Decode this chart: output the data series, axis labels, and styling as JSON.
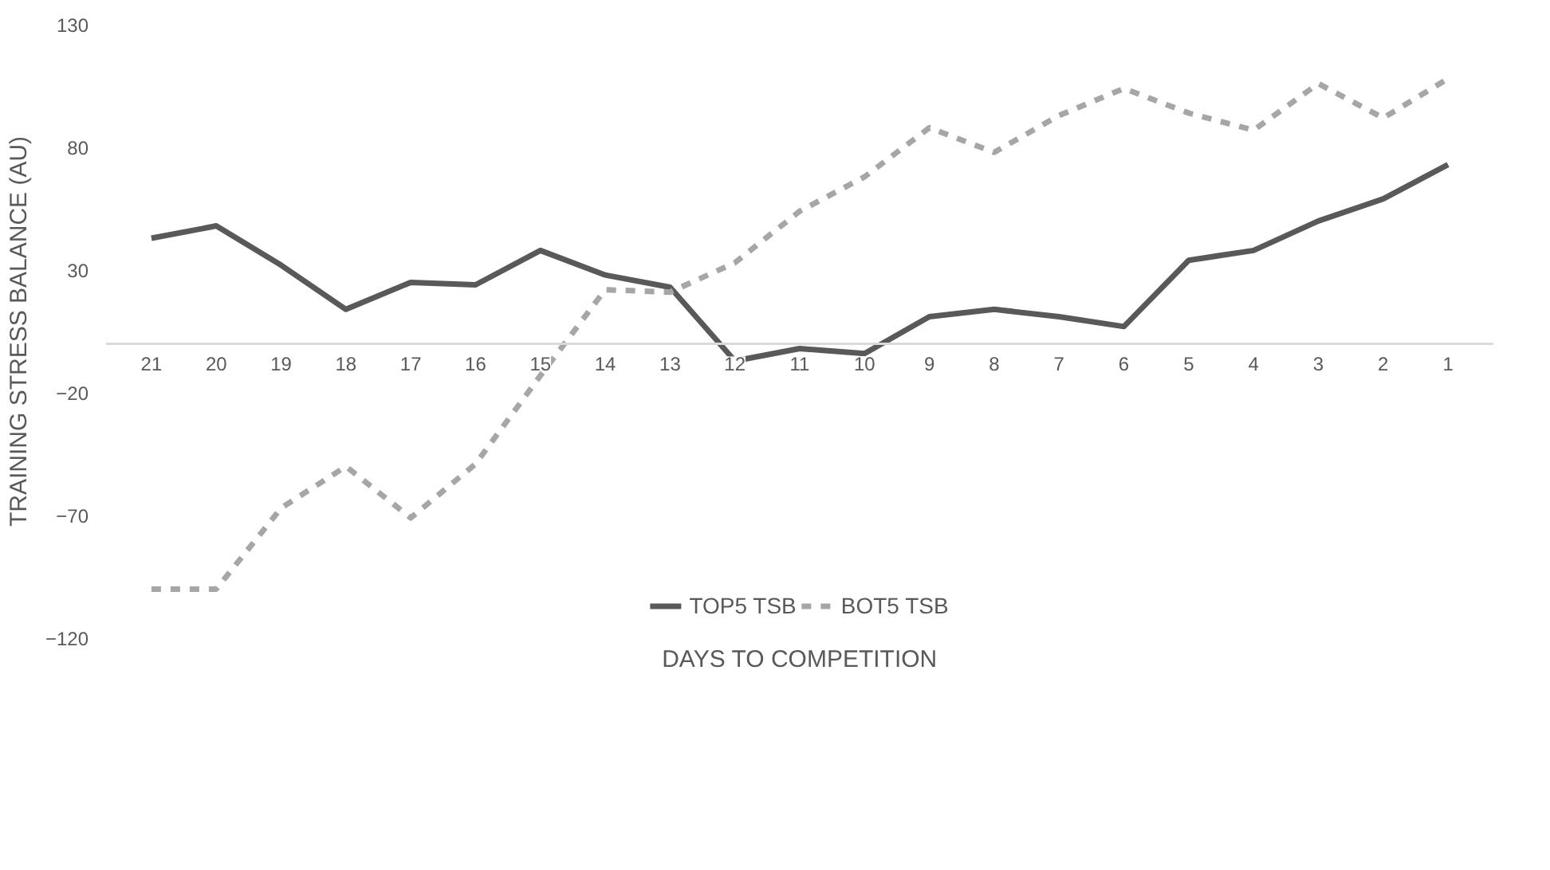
{
  "chart_data": {
    "type": "line",
    "xlabel": "DAYS TO COMPETITION",
    "ylabel": "TRAINING STRESS BALANCE (AU)",
    "categories": [
      "21",
      "20",
      "19",
      "18",
      "17",
      "16",
      "15",
      "14",
      "13",
      "12",
      "11",
      "10",
      "9",
      "8",
      "7",
      "6",
      "5",
      "4",
      "3",
      "2",
      "1"
    ],
    "series": [
      {
        "name": "TOP5 TSB",
        "color": "#595959",
        "line_style": "solid",
        "values": [
          43,
          48,
          32,
          14,
          25,
          24,
          38,
          28,
          23,
          -7,
          -2,
          -4,
          11,
          14,
          11,
          7,
          34,
          38,
          50,
          59,
          73
        ]
      },
      {
        "name": "BOT5 TSB",
        "color": "#a6a6a6",
        "line_style": "dashed",
        "values": [
          -100,
          -100,
          -67,
          -50,
          -71,
          -49,
          -13,
          22,
          21,
          33,
          54,
          68,
          88,
          78,
          93,
          104,
          94,
          87,
          106,
          92,
          108
        ]
      }
    ],
    "ylim": [
      -120,
      130
    ],
    "yticks": [
      -120,
      -70,
      -20,
      30,
      80,
      130
    ],
    "grid": false,
    "legend": "bottom",
    "marker": "none"
  }
}
